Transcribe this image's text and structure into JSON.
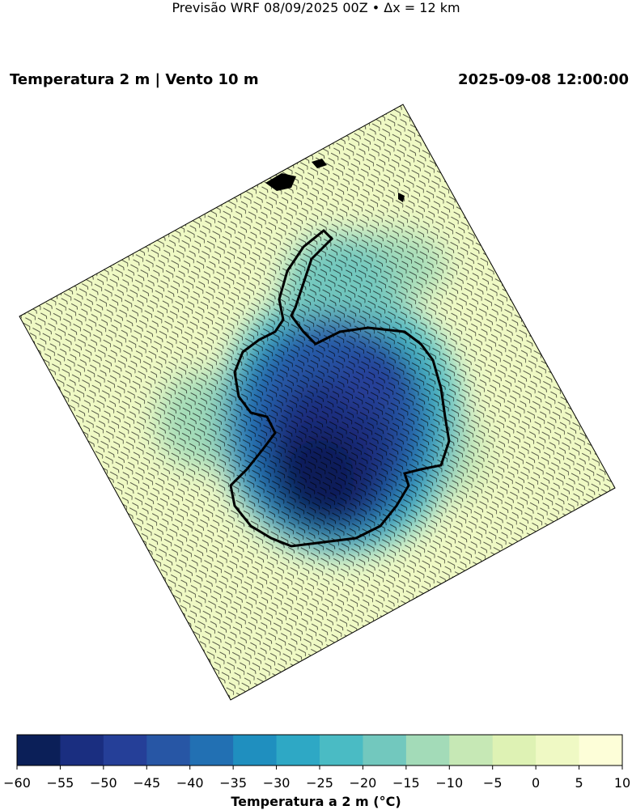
{
  "suptitle": "Previsão WRF 08/09/2025 00Z • Δx = 12 km",
  "title_left": "Temperatura 2 m | Vento 10 m",
  "title_right": "2025-09-08 12:00:00",
  "colorbar": {
    "label": "Temperatura a 2 m (°C)",
    "ticks": [
      "−60",
      "−55",
      "−50",
      "−45",
      "−40",
      "−35",
      "−30",
      "−25",
      "−20",
      "−15",
      "−10",
      "−5",
      "0",
      "5",
      "10"
    ],
    "levels": [
      -60,
      -55,
      -50,
      -45,
      -40,
      -35,
      -30,
      -25,
      -20,
      -15,
      -10,
      -5,
      0,
      5,
      10
    ],
    "colors": [
      "#0b1f58",
      "#1a2e80",
      "#253f98",
      "#2756a5",
      "#2270b3",
      "#1f8fbf",
      "#2ea8c5",
      "#4abbc4",
      "#72c8be",
      "#a3dbb8",
      "#c6e8b5",
      "#def2b4",
      "#eff9c4",
      "#fdfed8"
    ]
  }
}
